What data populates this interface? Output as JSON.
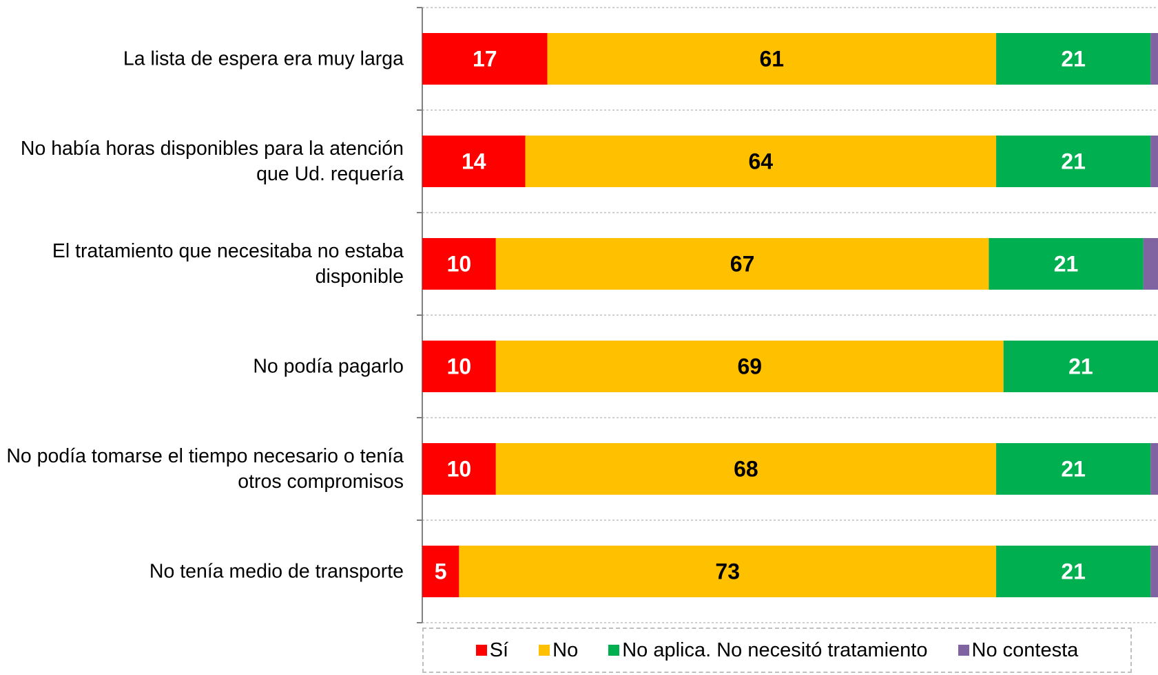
{
  "chart_data": {
    "type": "stacked-bar-horizontal",
    "categories": [
      "La lista de espera era muy larga",
      "No había horas disponibles para la atención que Ud. requería",
      "El tratamiento que necesitaba no estaba disponible",
      "No podía pagarlo",
      "No podía tomarse el tiempo necesario o tenía otros compromisos",
      "No tenía medio de transporte"
    ],
    "series": [
      {
        "name": "Sí",
        "color": "#ff0000",
        "label_color": "#ffffff",
        "values": [
          17,
          14,
          10,
          10,
          10,
          5
        ]
      },
      {
        "name": "No",
        "color": "#ffc000",
        "label_color": "#000000",
        "values": [
          61,
          64,
          67,
          69,
          68,
          73
        ]
      },
      {
        "name": "No aplica. No necesitó tratamiento",
        "color": "#00b050",
        "label_color": "#ffffff",
        "values": [
          21,
          21,
          21,
          21,
          21,
          21
        ]
      },
      {
        "name": "No contesta",
        "color": "#8064a2",
        "values": [
          1,
          1,
          2,
          0,
          1,
          1
        ]
      }
    ],
    "xlim": [
      0,
      100
    ],
    "grid": true,
    "legend": "bottom"
  }
}
